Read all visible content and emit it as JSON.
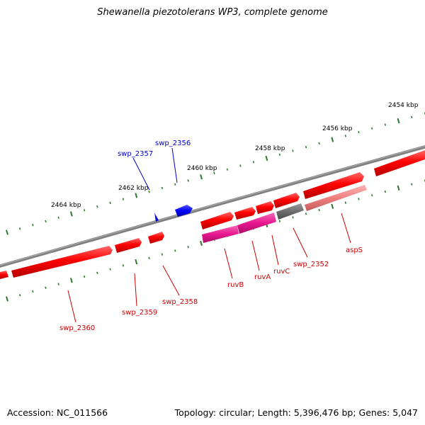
{
  "header": {
    "title": "Shewanella piezotolerans WP3, complete genome"
  },
  "footer": {
    "accession": "Accession: NC_011566",
    "summary": "Topology: circular; Length: 5,396,476 bp; Genes: 5,047"
  },
  "map": {
    "colors": {
      "backbone": "#808080",
      "tick": "#2a7a2a",
      "gene_forward": "#ff0000",
      "gene_reverse": "#0000ff",
      "ruv_genes": "#e8168e",
      "aspS": "#f07f7f",
      "hypothetical": "#6e6e6e",
      "label_forward": "#cc0000",
      "label_reverse": "#0000cc"
    },
    "ticks": [
      {
        "label": "2454 kbp"
      },
      {
        "label": "2456 kbp"
      },
      {
        "label": "2458 kbp"
      },
      {
        "label": "2460 kbp"
      },
      {
        "label": "2462 kbp"
      },
      {
        "label": "2464 kbp"
      }
    ],
    "gene_labels": [
      {
        "text": "swp_2357",
        "strand": "reverse"
      },
      {
        "text": "swp_2356",
        "strand": "reverse"
      },
      {
        "text": "aspS",
        "strand": "forward"
      },
      {
        "text": "swp_2352",
        "strand": "forward"
      },
      {
        "text": "ruvC",
        "strand": "forward"
      },
      {
        "text": "ruvA",
        "strand": "forward"
      },
      {
        "text": "ruvB",
        "strand": "forward"
      },
      {
        "text": "swp_2358",
        "strand": "forward"
      },
      {
        "text": "swp_2359",
        "strand": "forward"
      },
      {
        "text": "swp_2360",
        "strand": "forward"
      }
    ]
  }
}
